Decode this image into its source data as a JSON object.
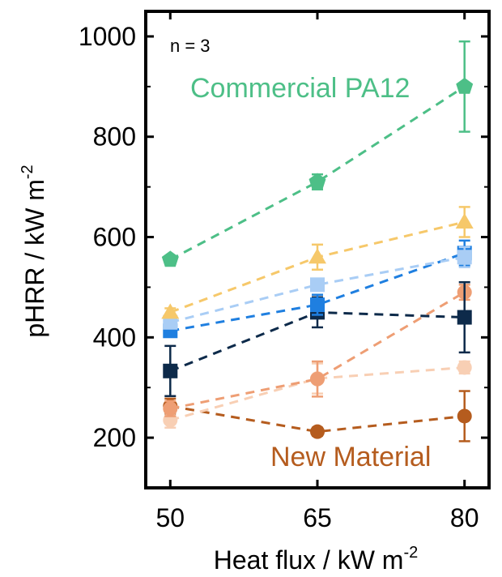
{
  "chart_data": {
    "type": "line",
    "note": "n = 3",
    "xlabel": "Heat flux / kW m",
    "xlabel_sup": "-2",
    "ylabel": "pHRR / kW m",
    "ylabel_sup": "-2",
    "x": [
      50,
      65,
      80
    ],
    "x_ticks": [
      "50",
      "65",
      "80"
    ],
    "xlim": [
      47.5,
      82.5
    ],
    "y_ticks": [
      "200",
      "400",
      "600",
      "800",
      "1000"
    ],
    "y_tick_values": [
      200,
      400,
      600,
      800,
      1000
    ],
    "ylim": [
      100,
      1050
    ],
    "grid": false,
    "series": [
      {
        "values": [
          555,
          710,
          900
        ],
        "errors": [
          0,
          15,
          90
        ],
        "color": "#4dbf87",
        "marker": "pentagon"
      },
      {
        "values": [
          450,
          560,
          630
        ],
        "errors": [
          8,
          25,
          30
        ],
        "color": "#f6c86a",
        "marker": "triangle"
      },
      {
        "values": [
          430,
          505,
          560
        ],
        "errors": [
          8,
          12,
          20
        ],
        "color": "#a9cdf5",
        "marker": "square"
      },
      {
        "values": [
          413,
          465,
          568
        ],
        "errors": [
          10,
          20,
          25
        ],
        "color": "#1f7fe0",
        "marker": "square"
      },
      {
        "values": [
          333,
          450,
          440
        ],
        "errors": [
          50,
          30,
          70
        ],
        "color": "#0d2a4a",
        "marker": "square"
      },
      {
        "values": [
          258,
          317,
          490
        ],
        "errors": [
          15,
          35,
          15
        ],
        "color": "#ee9e74",
        "marker": "circle"
      },
      {
        "values": [
          235,
          318,
          340
        ],
        "errors": [
          15,
          30,
          12
        ],
        "color": "#f8cfb4",
        "marker": "circle"
      },
      {
        "values": [
          263,
          212,
          243
        ],
        "errors": [
          15,
          8,
          50
        ],
        "color": "#b55c1e",
        "marker": "circle"
      }
    ],
    "annotations": [
      {
        "text": "Commercial PA12",
        "color": "#4dbf87"
      },
      {
        "text": "New Material",
        "color": "#b55c1e"
      }
    ]
  }
}
